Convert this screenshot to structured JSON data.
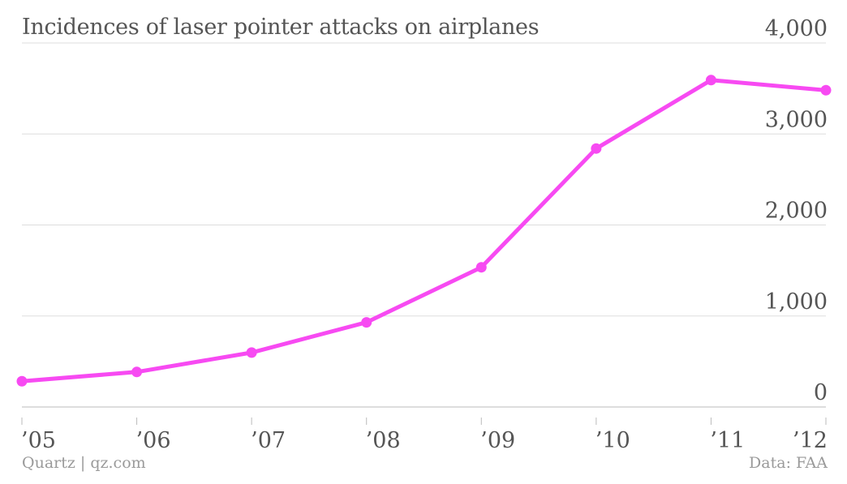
{
  "title": "Incidences of laser pointer attacks on airplanes",
  "footer": {
    "credit": "Quartz | qz.com",
    "source": "Data: FAA"
  },
  "colors": {
    "series": "#f74af2",
    "grid": "#dddddd",
    "text": "#555555",
    "footer": "#9a9a9a"
  },
  "chart_data": {
    "type": "line",
    "title": "Incidences of laser pointer attacks on airplanes",
    "categories": [
      "’05",
      "’06",
      "’07",
      "’08",
      "’09",
      "’10",
      "’11",
      "’12"
    ],
    "series": [
      {
        "values": [
          283,
          385,
          598,
          930,
          1535,
          2840,
          3592,
          3481
        ]
      }
    ],
    "yticks": [
      "0",
      "1,000",
      "2,000",
      "3,000",
      "4,000"
    ],
    "ylim": [
      0,
      4000
    ],
    "y_axis_position": "right",
    "grid": true,
    "markers": true,
    "xlabel": "",
    "ylabel": ""
  }
}
